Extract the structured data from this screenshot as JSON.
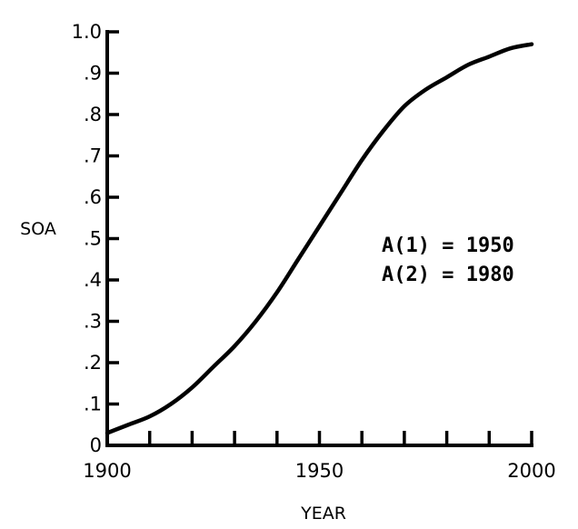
{
  "chart_data": {
    "type": "line",
    "title": "",
    "xlabel": "YEAR",
    "ylabel": "SOA",
    "xlim": [
      1900,
      2000
    ],
    "ylim": [
      0,
      1.0
    ],
    "x_tick_labels": [
      "1900",
      "1950",
      "2000"
    ],
    "x_minor_ticks": [
      1910,
      1920,
      1930,
      1940,
      1950,
      1960,
      1970,
      1980,
      1990,
      2000
    ],
    "y_ticks": [
      0,
      0.1,
      0.2,
      0.3,
      0.4,
      0.5,
      0.6,
      0.7,
      0.8,
      0.9,
      1.0
    ],
    "y_tick_labels": [
      "0",
      ".1",
      ".2",
      ".3",
      ".4",
      ".5",
      ".6",
      ".7",
      ".8",
      ".9",
      "1.0"
    ],
    "grid": false,
    "series": [
      {
        "x": [
          1900,
          1905,
          1910,
          1915,
          1920,
          1925,
          1930,
          1935,
          1940,
          1945,
          1950,
          1955,
          1960,
          1965,
          1970,
          1975,
          1980,
          1985,
          1990,
          1995,
          2000
        ],
        "y": [
          0.03,
          0.05,
          0.07,
          0.1,
          0.14,
          0.19,
          0.24,
          0.3,
          0.37,
          0.45,
          0.53,
          0.61,
          0.69,
          0.76,
          0.82,
          0.86,
          0.89,
          0.92,
          0.94,
          0.96,
          0.97
        ]
      }
    ],
    "annotations": [
      "A(1) = 1950",
      "A(2) = 1980"
    ]
  }
}
